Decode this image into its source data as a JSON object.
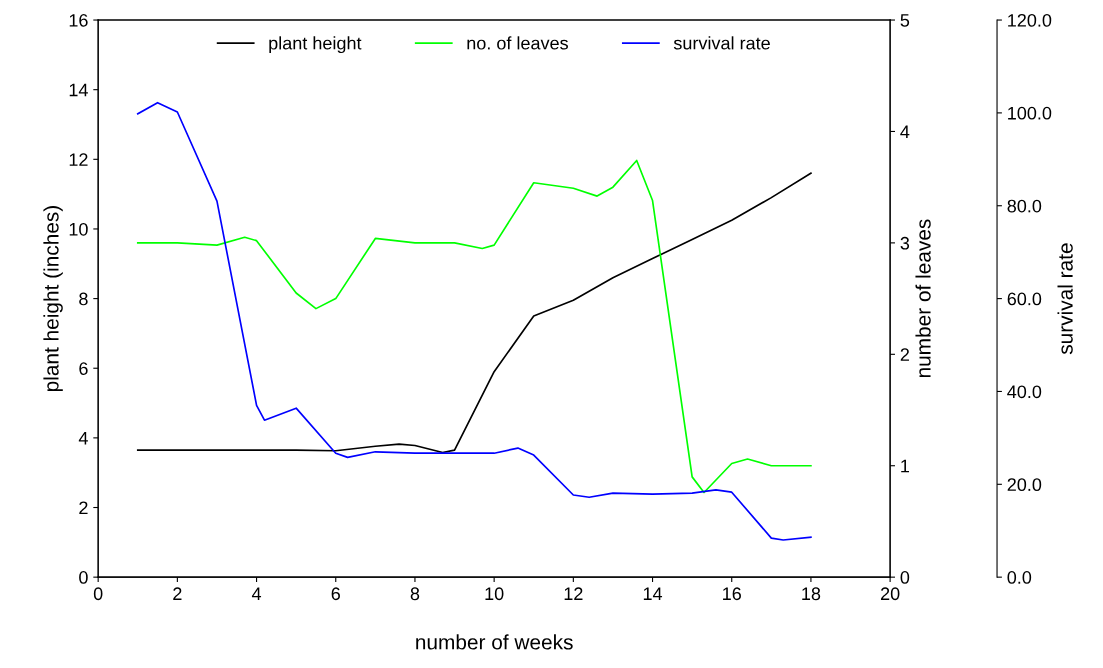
{
  "chart_data": {
    "type": "line",
    "xlabel": "number of weeks",
    "ylabel": "plant height (inches)",
    "y2label": "number of leaves",
    "y3label": "survival rate",
    "series": [
      {
        "name": "plant height",
        "color": "#000000",
        "x": [
          1,
          2,
          3,
          4,
          5,
          6,
          7,
          7.6,
          8,
          8.7,
          9,
          10,
          11,
          12,
          13,
          14,
          15,
          16,
          17,
          18
        ],
        "values": [
          3.65,
          3.65,
          3.65,
          3.65,
          3.65,
          3.63,
          3.76,
          3.82,
          3.78,
          3.58,
          3.65,
          5.9,
          7.5,
          7.95,
          8.6,
          9.15,
          9.7,
          10.25,
          10.9,
          11.6
        ]
      },
      {
        "name": "no. of leaves",
        "color": "#00ff00",
        "axis": "y2",
        "x": [
          1,
          2,
          3,
          3.7,
          4,
          5,
          5.5,
          6,
          7,
          8,
          9,
          9.7,
          10,
          11,
          12,
          12.6,
          13,
          13.6,
          14,
          15,
          15.3,
          16,
          16.4,
          17,
          18
        ],
        "values": [
          3.0,
          3.0,
          2.98,
          3.05,
          3.02,
          2.55,
          2.41,
          2.5,
          3.04,
          3.0,
          3.0,
          2.95,
          2.98,
          3.54,
          3.49,
          3.42,
          3.5,
          3.74,
          3.38,
          0.9,
          0.76,
          1.02,
          1.06,
          1.0,
          1.0
        ]
      },
      {
        "name": "survival rate",
        "color": "#0000ff",
        "axis": "y3",
        "x": [
          1,
          1.5,
          2,
          3,
          4,
          4.2,
          5,
          6,
          6.3,
          7,
          8,
          9,
          10,
          10.6,
          11,
          12,
          12.4,
          13,
          14,
          15,
          15.6,
          16,
          17,
          17.3,
          18
        ],
        "values": [
          99.8,
          102.2,
          100.2,
          81,
          37,
          33.8,
          36.4,
          26.7,
          25.8,
          27,
          26.7,
          26.7,
          26.7,
          27.8,
          26.3,
          17.7,
          17.2,
          18.1,
          17.9,
          18.1,
          18.8,
          18.3,
          8.4,
          8.0,
          8.6
        ]
      }
    ],
    "xlim": [
      0,
      20
    ],
    "xticks": [
      0,
      2,
      4,
      6,
      8,
      10,
      12,
      14,
      16,
      18,
      20
    ],
    "ylim": [
      0,
      16
    ],
    "yticks": [
      0,
      2,
      4,
      6,
      8,
      10,
      12,
      14,
      16
    ],
    "y2lim": [
      0,
      5
    ],
    "y2ticks": [
      0,
      1,
      2,
      3,
      4,
      5
    ],
    "y3lim": [
      0,
      120
    ],
    "y3ticks": [
      {
        "value": 0,
        "label": "0.0"
      },
      {
        "value": 20,
        "label": "20.0"
      },
      {
        "value": 40,
        "label": "40.0"
      },
      {
        "value": 60,
        "label": "60.0"
      },
      {
        "value": 80,
        "label": "80.0"
      },
      {
        "value": 100,
        "label": "100.0"
      },
      {
        "value": 120,
        "label": "120.0"
      }
    ],
    "legend": "top",
    "grid": false,
    "line_style": "solid",
    "marker": "none"
  }
}
